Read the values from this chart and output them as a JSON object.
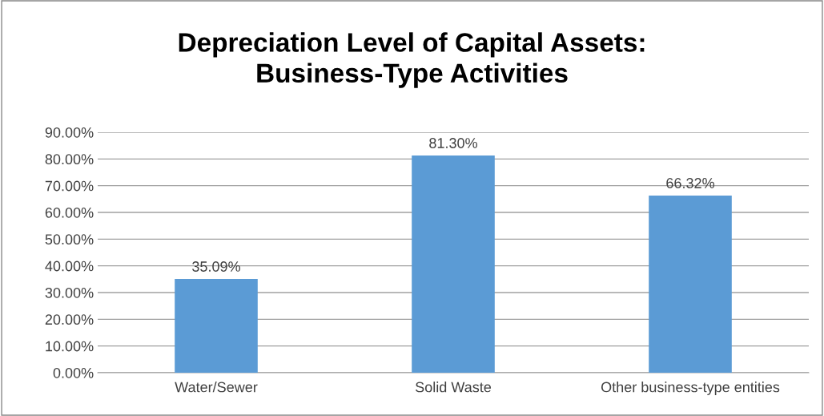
{
  "chart_data": {
    "type": "bar",
    "title": "Depreciation Level of Capital Assets:\nBusiness-Type Activities",
    "categories": [
      "Water/Sewer",
      "Solid Waste",
      "Other business-type entities"
    ],
    "values": [
      35.09,
      81.3,
      66.32
    ],
    "color": "#5b9bd5",
    "value_labels": [
      "35.09%",
      "81.30%",
      "66.32%"
    ],
    "ylim": [
      0,
      90
    ],
    "yticks": [
      {
        "value": 0,
        "label": "0.00%"
      },
      {
        "value": 10,
        "label": "10.00%"
      },
      {
        "value": 20,
        "label": "20.00%"
      },
      {
        "value": 30,
        "label": "30.00%"
      },
      {
        "value": 40,
        "label": "40.00%"
      },
      {
        "value": 50,
        "label": "50.00%"
      },
      {
        "value": 60,
        "label": "60.00%"
      },
      {
        "value": 70,
        "label": "70.00%"
      },
      {
        "value": 80,
        "label": "80.00%"
      },
      {
        "value": 90,
        "label": "90.00%"
      }
    ],
    "grid": "y",
    "legend": false
  }
}
